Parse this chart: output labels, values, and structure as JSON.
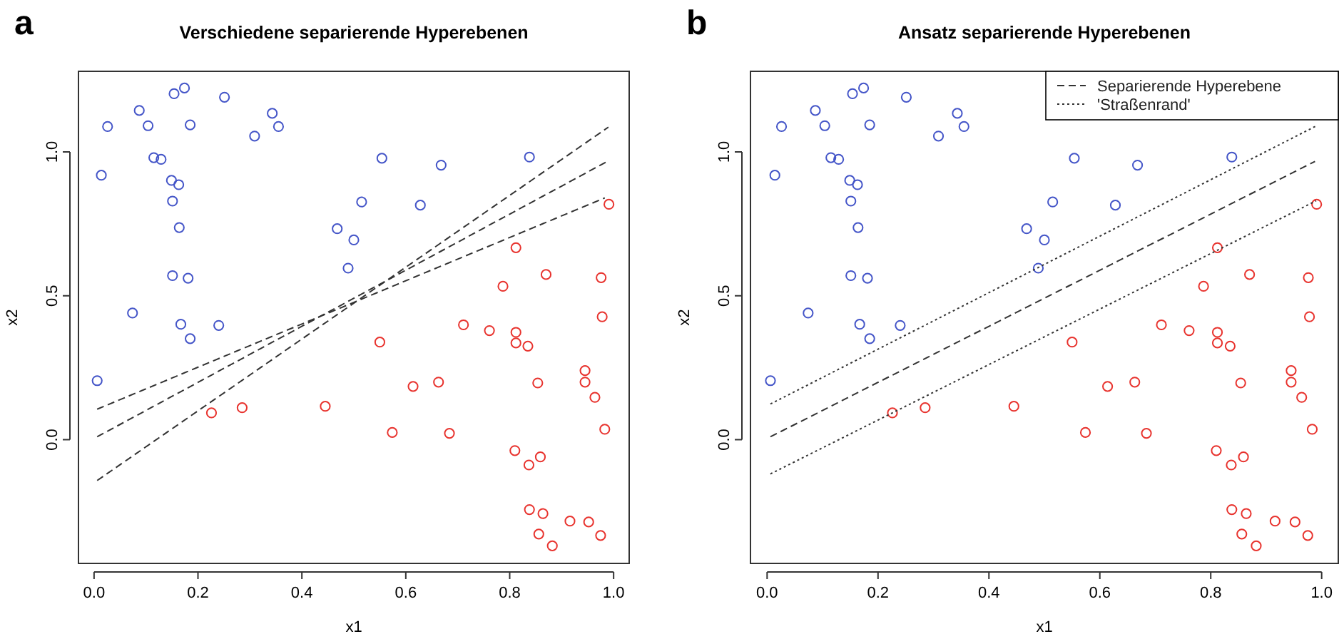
{
  "chart_data": [
    {
      "type": "scatter",
      "title": "Verschiedene separierende Hyperebenen",
      "xlabel": "x1",
      "ylabel": "x2",
      "annotations": [
        "a"
      ],
      "xlim": [
        -0.03,
        1.03
      ],
      "ylim": [
        -0.43,
        1.28
      ],
      "xticks": [
        {
          "value": 0,
          "label": "0.0"
        },
        {
          "value": 0.2,
          "label": "0.2"
        },
        {
          "value": 0.4,
          "label": "0.4"
        },
        {
          "value": 0.6,
          "label": "0.6"
        },
        {
          "value": 0.8,
          "label": "0.8"
        },
        {
          "value": 1,
          "label": "1.0"
        }
      ],
      "yticks": [
        {
          "value": 0,
          "label": "0.0"
        },
        {
          "value": 0.5,
          "label": "0.5"
        },
        {
          "value": 1,
          "label": "1.0"
        }
      ],
      "grid": false,
      "marker": "circle",
      "series": [
        {
          "color": "#4455c8",
          "x": [
            0.006,
            0.014,
            0.026,
            0.087,
            0.104,
            0.115,
            0.129,
            0.149,
            0.163,
            0.151,
            0.154,
            0.174,
            0.185,
            0.251,
            0.309,
            0.343,
            0.355,
            0.164,
            0.151,
            0.181,
            0.074,
            0.167,
            0.185,
            0.24,
            0.468,
            0.489,
            0.5,
            0.515,
            0.554,
            0.628,
            0.668,
            0.838
          ],
          "values": [
            0.205,
            0.919,
            1.088,
            1.144,
            1.091,
            0.98,
            0.974,
            0.901,
            0.886,
            0.829,
            1.202,
            1.222,
            1.094,
            1.19,
            1.055,
            1.134,
            1.088,
            0.737,
            0.57,
            0.561,
            0.44,
            0.401,
            0.351,
            0.397,
            0.733,
            0.596,
            0.694,
            0.826,
            0.978,
            0.815,
            0.954,
            0.982
          ]
        },
        {
          "color": "#e8332e",
          "x": [
            0.226,
            0.285,
            0.445,
            0.55,
            0.574,
            0.614,
            0.663,
            0.684,
            0.711,
            0.761,
            0.787,
            0.812,
            0.812,
            0.812,
            0.835,
            0.854,
            0.87,
            0.81,
            0.837,
            0.859,
            0.838,
            0.864,
            0.856,
            0.882,
            0.916,
            0.952,
            0.975,
            0.945,
            0.945,
            0.964,
            0.976,
            0.978,
            0.983,
            0.991
          ],
          "values": [
            0.093,
            0.111,
            0.116,
            0.339,
            0.025,
            0.185,
            0.2,
            0.022,
            0.399,
            0.379,
            0.533,
            0.667,
            0.373,
            0.336,
            0.325,
            0.197,
            0.574,
            -0.038,
            -0.088,
            -0.06,
            -0.243,
            -0.257,
            -0.328,
            -0.369,
            -0.283,
            -0.286,
            -0.333,
            0.24,
            0.2,
            0.147,
            0.563,
            0.427,
            0.036,
            0.818
          ]
        },
        {
          "type": "line",
          "color": "#333333",
          "line_style": "dashed",
          "marker": "none",
          "x": [
            0.006,
            0.99
          ],
          "values": [
            -0.142,
            1.086
          ]
        },
        {
          "type": "line",
          "color": "#333333",
          "line_style": "dashed",
          "marker": "none",
          "x": [
            0.006,
            0.988
          ],
          "values": [
            0.01,
            0.967
          ]
        },
        {
          "type": "line",
          "color": "#333333",
          "line_style": "dashed",
          "marker": "none",
          "x": [
            0.006,
            0.983
          ],
          "values": [
            0.106,
            0.84
          ]
        }
      ]
    },
    {
      "type": "scatter",
      "title": "Ansatz separierende Hyperebenen",
      "xlabel": "x1",
      "ylabel": "x2",
      "annotations": [
        "b"
      ],
      "xlim": [
        -0.03,
        1.03
      ],
      "ylim": [
        -0.43,
        1.28
      ],
      "xticks": [
        {
          "value": 0,
          "label": "0.0"
        },
        {
          "value": 0.2,
          "label": "0.2"
        },
        {
          "value": 0.4,
          "label": "0.4"
        },
        {
          "value": 0.6,
          "label": "0.6"
        },
        {
          "value": 0.8,
          "label": "0.8"
        },
        {
          "value": 1,
          "label": "1.0"
        }
      ],
      "yticks": [
        {
          "value": 0,
          "label": "0.0"
        },
        {
          "value": 0.5,
          "label": "0.5"
        },
        {
          "value": 1,
          "label": "1.0"
        }
      ],
      "grid": false,
      "legend": "top right",
      "marker": "circle",
      "series": [
        {
          "color": "#4455c8",
          "x": [
            0.006,
            0.014,
            0.026,
            0.087,
            0.104,
            0.115,
            0.129,
            0.149,
            0.163,
            0.151,
            0.154,
            0.174,
            0.185,
            0.251,
            0.309,
            0.343,
            0.355,
            0.164,
            0.151,
            0.181,
            0.074,
            0.167,
            0.185,
            0.24,
            0.468,
            0.489,
            0.5,
            0.515,
            0.554,
            0.628,
            0.668,
            0.838
          ],
          "values": [
            0.205,
            0.919,
            1.088,
            1.144,
            1.091,
            0.98,
            0.974,
            0.901,
            0.886,
            0.829,
            1.202,
            1.222,
            1.094,
            1.19,
            1.055,
            1.134,
            1.088,
            0.737,
            0.57,
            0.561,
            0.44,
            0.401,
            0.351,
            0.397,
            0.733,
            0.596,
            0.694,
            0.826,
            0.978,
            0.815,
            0.954,
            0.982
          ]
        },
        {
          "color": "#e8332e",
          "x": [
            0.226,
            0.285,
            0.445,
            0.55,
            0.574,
            0.614,
            0.663,
            0.684,
            0.711,
            0.761,
            0.787,
            0.812,
            0.812,
            0.812,
            0.835,
            0.854,
            0.87,
            0.81,
            0.837,
            0.859,
            0.838,
            0.864,
            0.856,
            0.882,
            0.916,
            0.952,
            0.975,
            0.945,
            0.945,
            0.964,
            0.976,
            0.978,
            0.983,
            0.991
          ],
          "values": [
            0.093,
            0.111,
            0.116,
            0.339,
            0.025,
            0.185,
            0.2,
            0.022,
            0.399,
            0.379,
            0.533,
            0.667,
            0.373,
            0.336,
            0.325,
            0.197,
            0.574,
            -0.038,
            -0.088,
            -0.06,
            -0.243,
            -0.257,
            -0.328,
            -0.369,
            -0.283,
            -0.286,
            -0.333,
            0.24,
            0.2,
            0.147,
            0.563,
            0.427,
            0.036,
            0.818
          ]
        },
        {
          "type": "line",
          "name": "Separierende Hyperebene",
          "color": "#333333",
          "line_style": "dashed",
          "marker": "none",
          "x": [
            0.006,
            0.988
          ],
          "values": [
            0.01,
            0.967
          ]
        },
        {
          "type": "line",
          "name": "'Straßenrand'",
          "color": "#333333",
          "line_style": "dotted",
          "marker": "none",
          "x": [
            0.006,
            0.99
          ],
          "values": [
            0.124,
            1.09
          ]
        },
        {
          "type": "line",
          "color": "#333333",
          "line_style": "dotted",
          "marker": "none",
          "x": [
            0.006,
            0.99
          ],
          "values": [
            -0.119,
            0.83
          ]
        }
      ]
    }
  ]
}
